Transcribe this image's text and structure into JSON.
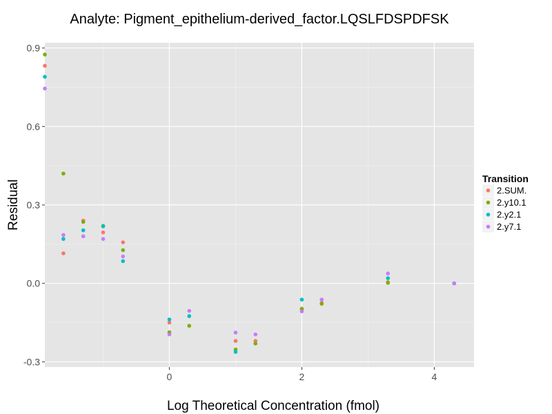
{
  "chart_data": {
    "type": "scatter",
    "title": "Analyte: Pigment_epithelium-derived_factor.LQSLFDSPDFSK",
    "xlabel": "Log Theoretical Concentration (fmol)",
    "ylabel": "Residual",
    "xlim": [
      -1.88,
      4.6
    ],
    "ylim": [
      -0.32,
      0.92
    ],
    "x_ticks": [
      0,
      2,
      4
    ],
    "y_ticks": [
      -0.3,
      0.0,
      0.3,
      0.6,
      0.9
    ],
    "x_tick_labels": [
      "0",
      "2",
      "4"
    ],
    "y_tick_labels": [
      "-0.3",
      "0.0",
      "0.3",
      "0.6",
      "0.9"
    ],
    "grid": true,
    "legend_position": "right",
    "legend_title": "Transition",
    "colors": {
      "panel_background": "#e5e5e5",
      "grid_major": "#ffffff",
      "grid_minor": "#f2f2f2"
    },
    "series": [
      {
        "name": "2.SUM.",
        "color": "#F8766D",
        "points": [
          [
            -1.88,
            0.832
          ],
          [
            -1.6,
            0.115
          ],
          [
            -1.3,
            0.24
          ],
          [
            -1.0,
            0.195
          ],
          [
            -0.7,
            0.157
          ],
          [
            0.0,
            -0.15
          ],
          [
            1.0,
            -0.22
          ],
          [
            1.3,
            -0.22
          ],
          [
            2.0,
            -0.1
          ],
          [
            2.3,
            -0.075
          ],
          [
            3.3,
            0.005
          ],
          [
            4.3,
            0.0
          ]
        ]
      },
      {
        "name": "2.y10.1",
        "color": "#7CAE00",
        "points": [
          [
            -1.88,
            0.875
          ],
          [
            -1.6,
            0.42
          ],
          [
            -1.3,
            0.235
          ],
          [
            -1.0,
            0.22
          ],
          [
            -0.7,
            0.127
          ],
          [
            0.0,
            -0.187
          ],
          [
            0.3,
            -0.162
          ],
          [
            1.0,
            -0.253
          ],
          [
            1.3,
            -0.23
          ],
          [
            2.0,
            -0.097
          ],
          [
            2.3,
            -0.078
          ],
          [
            3.3,
            0.002
          ],
          [
            4.3,
            0.0
          ]
        ]
      },
      {
        "name": "2.y2.1",
        "color": "#00BFC4",
        "points": [
          [
            -1.88,
            0.79
          ],
          [
            -1.6,
            0.17
          ],
          [
            -1.3,
            0.203
          ],
          [
            -1.0,
            0.218
          ],
          [
            -0.7,
            0.085
          ],
          [
            0.0,
            -0.138
          ],
          [
            0.3,
            -0.125
          ],
          [
            1.0,
            -0.262
          ],
          [
            2.0,
            -0.062
          ],
          [
            3.3,
            0.02
          ],
          [
            4.3,
            0.0
          ]
        ]
      },
      {
        "name": "2.y7.1",
        "color": "#C77CFF",
        "points": [
          [
            -1.88,
            0.745
          ],
          [
            -1.6,
            0.185
          ],
          [
            -1.3,
            0.18
          ],
          [
            -1.0,
            0.17
          ],
          [
            -0.7,
            0.103
          ],
          [
            0.0,
            -0.195
          ],
          [
            0.3,
            -0.105
          ],
          [
            1.0,
            -0.188
          ],
          [
            1.3,
            -0.195
          ],
          [
            2.0,
            -0.107
          ],
          [
            2.3,
            -0.062
          ],
          [
            3.3,
            0.038
          ],
          [
            4.3,
            0.0
          ]
        ]
      }
    ]
  }
}
